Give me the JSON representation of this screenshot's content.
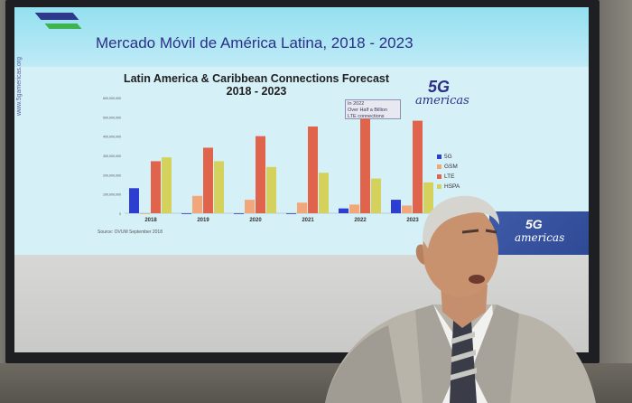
{
  "slide": {
    "title": "Mercado Móvil de América Latina, 2018 - 2023",
    "side_url": "www.5gamericas.org",
    "chart_title_line1": "Latin America & Caribbean Connections Forecast",
    "chart_title_line2": "2018 - 2023",
    "logo_mark": "5G",
    "logo_word": "americas",
    "callout_line1": "In 2022",
    "callout_line2": "Over Half a Billion",
    "callout_line3": "LTE connections",
    "source": "Source:  OVUM  September 2018",
    "corner_logo_mark": "5G",
    "corner_logo_word": "americas"
  },
  "chart_data": {
    "type": "bar",
    "title": "Latin America & Caribbean Connections Forecast",
    "subtitle": "2018 - 2023",
    "categories": [
      "2018",
      "2019",
      "2020",
      "2021",
      "2022",
      "2023"
    ],
    "series": [
      {
        "name": "5G",
        "color": "#2d3fd0",
        "values": [
          0,
          0,
          0,
          0,
          25000000,
          70000000
        ]
      },
      {
        "name": "GSM",
        "color": "#f2a77a",
        "values": [
          0,
          90000000,
          70000000,
          55000000,
          45000000,
          40000000
        ]
      },
      {
        "name": "LTE",
        "color": "#e0634c",
        "values": [
          270000000,
          340000000,
          400000000,
          450000000,
          490000000,
          480000000
        ]
      },
      {
        "name": "HSPA",
        "color": "#d4d25c",
        "values": [
          290000000,
          270000000,
          240000000,
          210000000,
          180000000,
          160000000
        ]
      }
    ],
    "extra_bar_2018": {
      "series": "5G-blue-left",
      "value": 130000000
    },
    "ylim": [
      0,
      600000000
    ],
    "y_ticks": [
      "600,000,000",
      "500,000,000",
      "400,000,000",
      "300,000,000",
      "200,000,000",
      "100,000,000",
      "0"
    ],
    "grid": false,
    "legend_position": "right"
  }
}
